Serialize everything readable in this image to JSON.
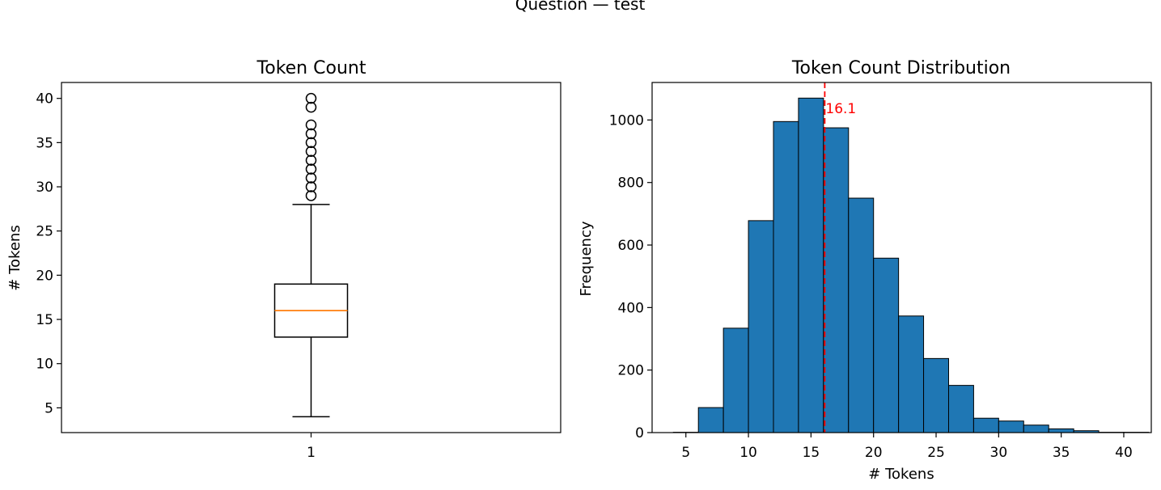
{
  "figure": {
    "suptitle": "Question — test"
  },
  "chart_data": [
    {
      "type": "box",
      "title": "Token Count",
      "xlabel": "",
      "ylabel": "# Tokens",
      "ylim": [
        2.2,
        41.8
      ],
      "yticks": [
        5,
        10,
        15,
        20,
        25,
        30,
        35,
        40
      ],
      "categories": [
        "1"
      ],
      "box": {
        "whisker_low": 4,
        "q1": 13,
        "median": 16,
        "q3": 19,
        "whisker_high": 28,
        "outliers": [
          29,
          30,
          31,
          32,
          33,
          34,
          35,
          36,
          37,
          39,
          40
        ]
      },
      "colors": {
        "median": "#ff7f0e",
        "box": "#000000"
      },
      "grid": false
    },
    {
      "type": "bar",
      "subtype": "histogram",
      "title": "Token Count Distribution",
      "xlabel": "# Tokens",
      "ylabel": "Frequency",
      "xlim": [
        2.3,
        42.2
      ],
      "ylim": [
        0,
        1120
      ],
      "xticks": [
        5,
        10,
        15,
        20,
        25,
        30,
        35,
        40
      ],
      "yticks": [
        0,
        200,
        400,
        600,
        800,
        1000
      ],
      "bins": [
        {
          "start": 4,
          "end": 6,
          "count": 1
        },
        {
          "start": 6,
          "end": 8,
          "count": 80
        },
        {
          "start": 8,
          "end": 10,
          "count": 334
        },
        {
          "start": 10,
          "end": 12,
          "count": 678
        },
        {
          "start": 12,
          "end": 14,
          "count": 995
        },
        {
          "start": 14,
          "end": 16,
          "count": 1070
        },
        {
          "start": 16,
          "end": 18,
          "count": 975
        },
        {
          "start": 18,
          "end": 20,
          "count": 750
        },
        {
          "start": 20,
          "end": 22,
          "count": 558
        },
        {
          "start": 22,
          "end": 24,
          "count": 373
        },
        {
          "start": 24,
          "end": 26,
          "count": 237
        },
        {
          "start": 26,
          "end": 28,
          "count": 151
        },
        {
          "start": 28,
          "end": 30,
          "count": 46
        },
        {
          "start": 30,
          "end": 32,
          "count": 37
        },
        {
          "start": 32,
          "end": 34,
          "count": 24
        },
        {
          "start": 34,
          "end": 36,
          "count": 12
        },
        {
          "start": 36,
          "end": 38,
          "count": 6
        },
        {
          "start": 38,
          "end": 40,
          "count": 1
        },
        {
          "start": 40,
          "end": 42,
          "count": 1
        }
      ],
      "mean_line": {
        "value": 16.1,
        "label": "16.1",
        "color": "#ff0000",
        "style": "dashed"
      },
      "colors": {
        "bar": "#1f77b4",
        "edge": "#000000"
      },
      "grid": false
    }
  ]
}
